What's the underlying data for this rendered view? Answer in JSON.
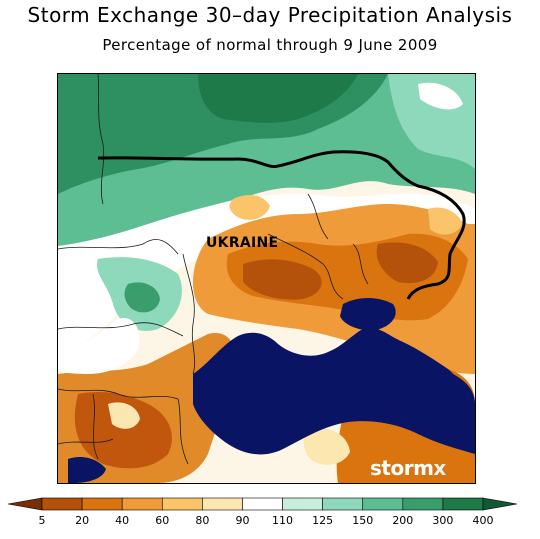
{
  "title": "Storm Exchange 30–day Precipitation Analysis",
  "subtitle": "Percentage of normal through 9 June 2009",
  "region_label": "UKRAINE",
  "watermark": {
    "main": "storm",
    "accent": "x"
  },
  "colorbar": {
    "labels": [
      "5",
      "20",
      "40",
      "60",
      "80",
      "90",
      "110",
      "125",
      "150",
      "200",
      "300",
      "400"
    ],
    "colors": [
      "#7a2e05",
      "#b4510a",
      "#d9740f",
      "#ef9b3a",
      "#fbc46a",
      "#fde7b0",
      "#ffffff",
      "#c8eedd",
      "#8ed8bc",
      "#5dbe94",
      "#3a9e6c",
      "#1e7a48",
      "#0f5a32"
    ]
  },
  "colors": {
    "sea": "#0a1464",
    "dry_strong": "#c0570c",
    "dry": "#e08a2a",
    "normal": "#ffffff",
    "wet": "#7fcfae",
    "wet_strong": "#2e9060",
    "border": "#000000"
  }
}
